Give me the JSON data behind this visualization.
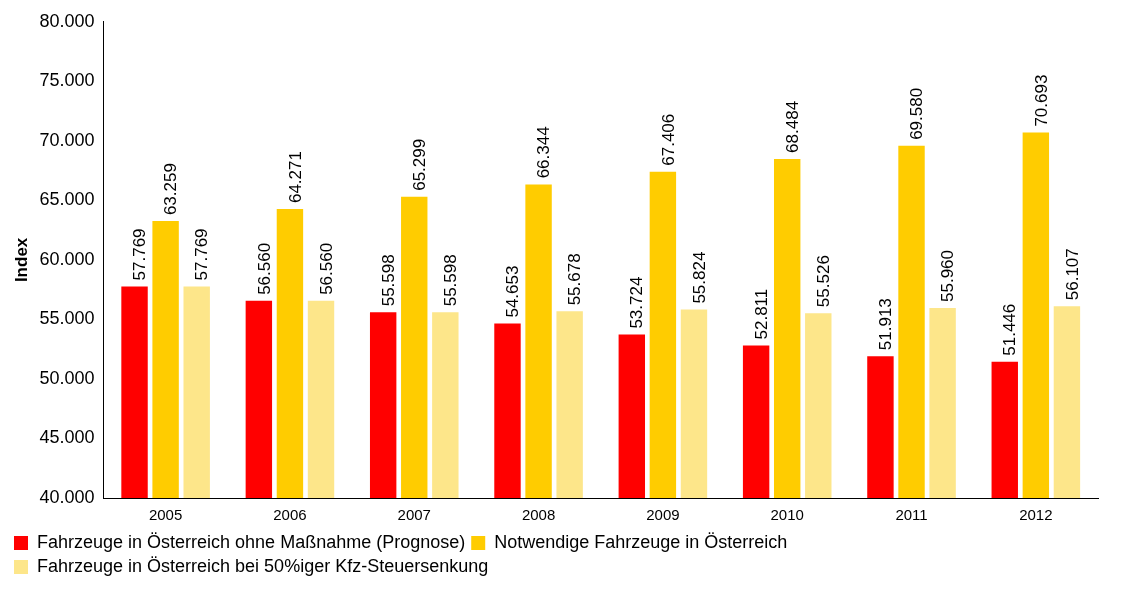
{
  "chart_data": {
    "type": "bar",
    "ylabel": "Index",
    "categories": [
      "2005",
      "2006",
      "2007",
      "2008",
      "2009",
      "2010",
      "2011",
      "2012"
    ],
    "series": [
      {
        "name": "Fahrzeuge in Österreich ohne Maßnahme (Prognose)",
        "color": "#ff0000",
        "values": [
          57769,
          56560,
          55598,
          54653,
          53724,
          52811,
          51913,
          51446
        ],
        "value_labels": [
          "57.769",
          "56.560",
          "55.598",
          "54.653",
          "53.724",
          "52.811",
          "51.913",
          "51.446"
        ]
      },
      {
        "name": "Notwendige Fahrzeuge in Österreich",
        "color": "#ffcc00",
        "values": [
          63259,
          64271,
          65299,
          66344,
          67406,
          68484,
          69580,
          70693
        ],
        "value_labels": [
          "63.259",
          "64.271",
          "65.299",
          "66.344",
          "67.406",
          "68.484",
          "69.580",
          "70.693"
        ]
      },
      {
        "name": "Fahrzeuge in Österreich bei 50%iger Kfz-Steuersenkung",
        "color": "#fde68a",
        "values": [
          57769,
          56560,
          55598,
          55678,
          55824,
          55526,
          55960,
          56107
        ],
        "value_labels": [
          "57.769",
          "56.560",
          "55.598",
          "55.678",
          "55.824",
          "55.526",
          "55.960",
          "56.107"
        ]
      }
    ],
    "ylim": [
      40000,
      80000
    ],
    "yticks": [
      {
        "value": 40000,
        "label": "40.000"
      },
      {
        "value": 45000,
        "label": "45.000"
      },
      {
        "value": 50000,
        "label": "50.000"
      },
      {
        "value": 55000,
        "label": "55.000"
      },
      {
        "value": 60000,
        "label": "60.000"
      },
      {
        "value": 65000,
        "label": "65.000"
      },
      {
        "value": 70000,
        "label": "70.000"
      },
      {
        "value": 75000,
        "label": "75.000"
      },
      {
        "value": 80000,
        "label": "80.000"
      }
    ],
    "grid": false,
    "legend": "bottom"
  }
}
